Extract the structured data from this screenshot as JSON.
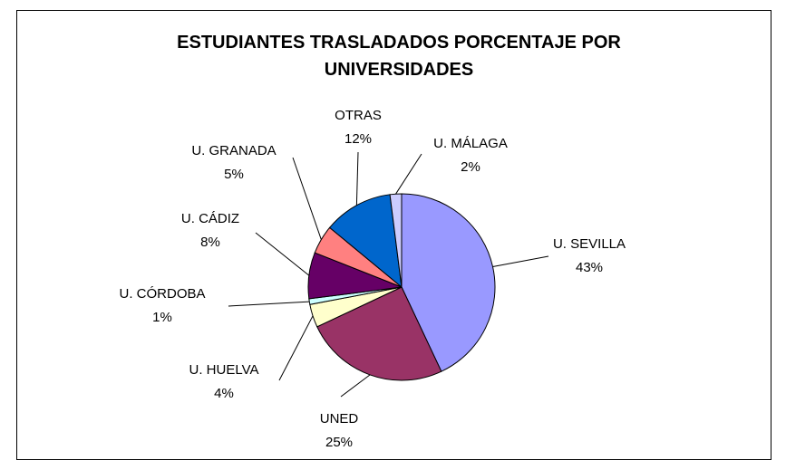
{
  "chart_data": {
    "type": "pie",
    "title": "ESTUDIANTES TRASLADADOS PORCENTAJE POR UNIVERSIDADES",
    "categories": [
      "U. SEVILLA",
      "UNED",
      "U. HUELVA",
      "U. CÓRDOBA",
      "U. CÁDIZ",
      "U. GRANADA",
      "OTRAS",
      "U. MÁLAGA"
    ],
    "values": [
      43,
      25,
      4,
      1,
      8,
      5,
      12,
      2
    ],
    "value_labels": [
      "43%",
      "25%",
      "4%",
      "1%",
      "8%",
      "5%",
      "12%",
      "2%"
    ],
    "colors": [
      "#9999ff",
      "#993366",
      "#ffffcc",
      "#ccffff",
      "#660066",
      "#ff8080",
      "#0066cc",
      "#ccccff"
    ]
  }
}
